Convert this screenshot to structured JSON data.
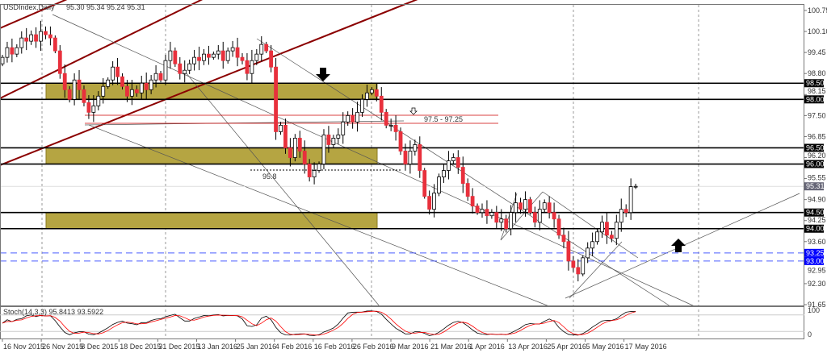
{
  "header": {
    "symbol": "USDIndex,Daily",
    "ohlc": "95.30 95.34 95.24 95.31"
  },
  "colors": {
    "bull_fill": "#ffffff",
    "bear_fill": "#e8303c",
    "candle_outline": "#000000",
    "zone": "#b5a542",
    "channel": "#8b0000",
    "support_blue": "#0000ff",
    "stoch_main": "#000000",
    "stoch_signal": "#ff0000"
  },
  "chart_data": {
    "type": "candlestick",
    "title": "USDIndex,Daily",
    "ylim": [
      91.65,
      100.75
    ],
    "y_ticks": [
      "100.75",
      "100.10",
      "99.45",
      "98.80",
      "98.15",
      "97.50",
      "96.85",
      "96.20",
      "95.55",
      "94.90",
      "94.25",
      "93.60",
      "92.95",
      "92.30",
      "91.65"
    ],
    "x_ticks": [
      "16 Nov 2015",
      "26 Nov 2015",
      "8 Dec 2015",
      "18 Dec 2015",
      "31 Dec 2015",
      "13 Jan 2016",
      "25 Jan 2016",
      "4 Feb 2016",
      "16 Feb 2016",
      "26 Feb 2016",
      "9 Mar 2016",
      "21 Mar 2016",
      "1 Apr 2016",
      "13 Apr 2016",
      "25 Apr 2016",
      "5 May 2016",
      "17 May 2016"
    ],
    "close": [
      99.3,
      99.6,
      99.4,
      99.6,
      99.9,
      99.8,
      100.0,
      99.8,
      100.1,
      100.0,
      99.9,
      99.5,
      98.8,
      98.3,
      98.0,
      98.6,
      98.3,
      97.9,
      97.6,
      97.8,
      98.1,
      98.4,
      98.6,
      99.0,
      98.7,
      98.4,
      98.1,
      98.3,
      98.2,
      98.5,
      98.3,
      98.6,
      98.8,
      98.6,
      99.2,
      99.5,
      99.1,
      98.8,
      98.9,
      99.1,
      99.3,
      99.2,
      99.4,
      99.3,
      99.4,
      99.5,
      99.2,
      99.5,
      99.6,
      99.3,
      99.2,
      98.8,
      99.2,
      99.4,
      99.7,
      99.5,
      99.0,
      97.0,
      97.2,
      96.5,
      96.2,
      96.8,
      96.4,
      96.0,
      95.6,
      95.8,
      96.0,
      96.9,
      96.6,
      96.8,
      96.9,
      97.3,
      97.5,
      97.3,
      97.6,
      98.0,
      98.2,
      98.3,
      98.1,
      97.6,
      97.2,
      97.2,
      97.0,
      96.4,
      96.0,
      96.4,
      96.6,
      95.8,
      95.0,
      94.6,
      95.1,
      95.6,
      95.8,
      96.1,
      96.2,
      95.9,
      95.4,
      95.0,
      94.7,
      94.5,
      94.6,
      94.4,
      94.5,
      94.2,
      94.3,
      94.0,
      94.5,
      94.8,
      94.6,
      94.9,
      94.5,
      94.2,
      94.6,
      94.8,
      94.5,
      94.3,
      93.8,
      93.6,
      93.0,
      92.8,
      92.6,
      93.1,
      93.4,
      93.6,
      93.9,
      94.2,
      93.8,
      93.7,
      94.2,
      94.6,
      94.5,
      95.3,
      95.31
    ],
    "last_price": "95.31",
    "levels_black": [
      "98.50",
      "98.00",
      "96.50",
      "96.00",
      "94.50",
      "94.00"
    ],
    "levels_blue": [
      "93.25",
      "93.00"
    ],
    "zones": [
      [
        "98.00",
        "98.50"
      ],
      [
        "96.00",
        "96.50"
      ],
      [
        "94.00",
        "94.50"
      ]
    ],
    "annotations": {
      "low_label": "95.8",
      "range_label": "97.5 - 97.25"
    },
    "indicator": {
      "label": "Stoch(14,3,3) 95.8413 93.5922",
      "top": "100",
      "bottom": "0"
    }
  }
}
